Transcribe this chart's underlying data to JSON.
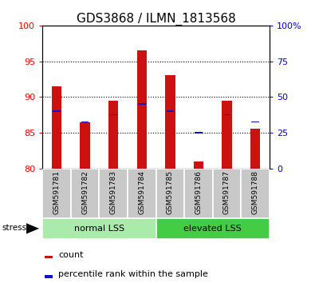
{
  "title": "GDS3868 / ILMN_1813568",
  "categories": [
    "GSM591781",
    "GSM591782",
    "GSM591783",
    "GSM591784",
    "GSM591785",
    "GSM591786",
    "GSM591787",
    "GSM591788"
  ],
  "count_values": [
    91.5,
    86.5,
    89.5,
    96.5,
    93.0,
    81.0,
    89.5,
    85.5
  ],
  "percentile_values": [
    88.0,
    86.5,
    87.5,
    89.0,
    88.0,
    85.0,
    87.5,
    86.5
  ],
  "ylim": [
    80,
    100
  ],
  "yticks_left": [
    80,
    85,
    90,
    95,
    100
  ],
  "yticks_right": [
    0,
    25,
    50,
    75,
    100
  ],
  "bar_bottom": 80,
  "bar_color_red": "#CC1111",
  "bar_color_blue": "#1111CC",
  "group1_label": "normal LSS",
  "group2_label": "elevated LSS",
  "stress_label": "stress",
  "legend_count": "count",
  "legend_percentile": "percentile rank within the sample",
  "group1_color": "#AAEAAA",
  "group2_color": "#44CC44",
  "tick_bg_color": "#C8C8C8",
  "title_fontsize": 11,
  "tick_fontsize": 8,
  "bar_width": 0.35,
  "pct_marker_size": 0.18
}
